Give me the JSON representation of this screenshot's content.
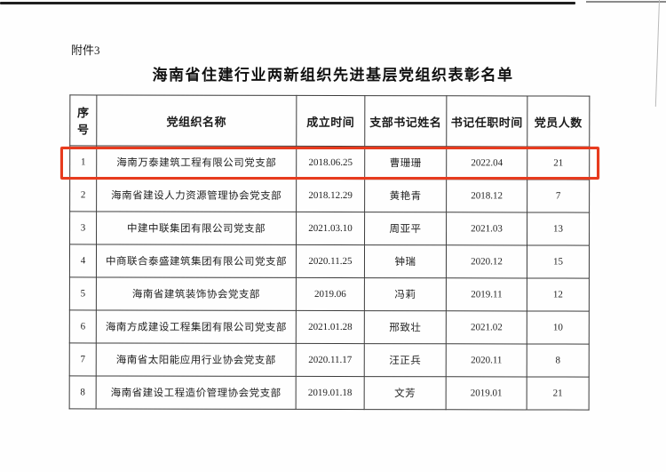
{
  "page": {
    "attachment_label": "附件3",
    "title": "海南省住建行业两新组织先进基层党组织表彰名单"
  },
  "table": {
    "columns": [
      "序号",
      "党组织名称",
      "成立时间",
      "支部书记姓名",
      "书记任职时间",
      "党员人数"
    ],
    "rows": [
      {
        "seq": "1",
        "org": "海南万泰建筑工程有限公司党支部",
        "founded": "2018.06.25",
        "secretary": "曹珊珊",
        "tenure": "2022.04",
        "members": "21"
      },
      {
        "seq": "2",
        "org": "海南省建设人力资源管理协会党支部",
        "founded": "2018.12.29",
        "secretary": "黄艳青",
        "tenure": "2018.12",
        "members": "7"
      },
      {
        "seq": "3",
        "org": "中建中联集团有限公司党支部",
        "founded": "2021.03.10",
        "secretary": "周亚平",
        "tenure": "2021.03",
        "members": "13"
      },
      {
        "seq": "4",
        "org": "中商联合泰盛建筑集团有限公司党支部",
        "founded": "2020.11.25",
        "secretary": "钟瑞",
        "tenure": "2020.12",
        "members": "15"
      },
      {
        "seq": "5",
        "org": "海南省建筑装饰协会党支部",
        "founded": "2019.06",
        "secretary": "冯莉",
        "tenure": "2019.11",
        "members": "12"
      },
      {
        "seq": "6",
        "org": "海南方成建设工程集团有限公司党支部",
        "founded": "2021.01.28",
        "secretary": "邢致壮",
        "tenure": "2021.02",
        "members": "10"
      },
      {
        "seq": "7",
        "org": "海南省太阳能应用行业协会党支部",
        "founded": "2020.11.17",
        "secretary": "汪正兵",
        "tenure": "2020.11",
        "members": "8"
      },
      {
        "seq": "8",
        "org": "海南省建设工程造价管理协会党支部",
        "founded": "2019.01.18",
        "secretary": "文芳",
        "tenure": "2019.01",
        "members": "21"
      }
    ]
  },
  "highlight": {
    "color": "#e73b1e",
    "highlighted_row_seq": "1"
  }
}
